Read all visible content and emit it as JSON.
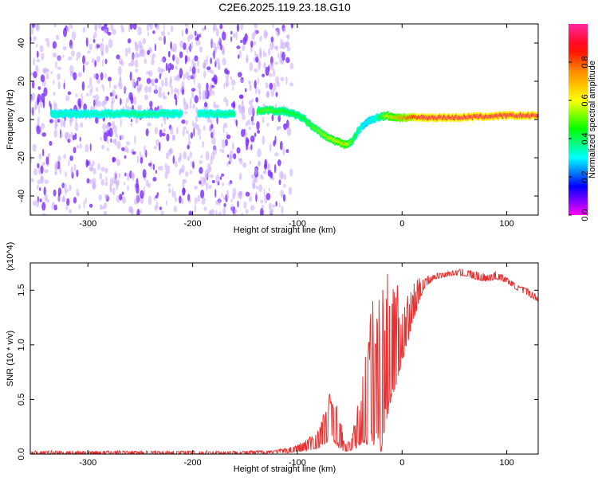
{
  "figure_title": "C2E6.2025.119.23.18.G10",
  "colors": {
    "snr_line": "#e83030",
    "ridge_low": "#5010f0",
    "ridge_high": "#ff2020",
    "noise_dark": "#7a2cff",
    "noise_light": "#c9a8ff"
  },
  "chart_data": [
    {
      "type": "heatmap",
      "title": "",
      "xlabel": "Height of straight line (km)",
      "ylabel": "Frequency (Hz)",
      "xlim": [
        -355,
        130
      ],
      "ylim": [
        -50,
        50
      ],
      "x_ticks": [
        -300,
        -200,
        -100,
        0,
        100
      ],
      "y_ticks": [
        -40,
        -20,
        0,
        20,
        40
      ],
      "colorbar": {
        "label": "Normalized spectral amplitude",
        "range": [
          0.0,
          1.0
        ],
        "ticks": [
          0.0,
          0.2,
          0.4,
          0.6,
          0.8
        ],
        "palette": "rainbow (magenta-blue-cyan-green-yellow-orange-red-pink)"
      },
      "signal_ridge": {
        "x": [
          -335,
          -300,
          -250,
          -200,
          -160,
          -130,
          -110,
          -95,
          -85,
          -75,
          -65,
          -55,
          -48,
          -42,
          -35,
          -25,
          -15,
          -5,
          5,
          20,
          50,
          100,
          130
        ],
        "freq": [
          3,
          3,
          3,
          3,
          3,
          5,
          4,
          1,
          -4,
          -8,
          -11,
          -13,
          -12,
          -6,
          -2,
          1,
          2,
          1,
          1,
          1,
          1,
          2,
          2
        ],
        "amplitude": [
          0.35,
          0.35,
          0.4,
          0.35,
          0.4,
          0.5,
          0.45,
          0.45,
          0.5,
          0.55,
          0.6,
          0.65,
          0.5,
          0.4,
          0.3,
          0.35,
          0.6,
          0.7,
          0.8,
          0.95,
          0.95,
          0.95,
          0.95
        ]
      },
      "noise_region": {
        "x_range": [
          -355,
          -125
        ],
        "freq_range": [
          -50,
          50
        ]
      }
    },
    {
      "type": "line",
      "title": "",
      "xlabel": "Height of straight line (km)",
      "ylabel": "SNR (10 * v/v)",
      "y_multiplier": "(x10^4)",
      "xlim": [
        -355,
        130
      ],
      "ylim": [
        0,
        1.75
      ],
      "x_ticks": [
        -300,
        -200,
        -100,
        0,
        100
      ],
      "y_ticks": [
        0.0,
        0.5,
        1.0,
        1.5
      ],
      "y_tick_labels": [
        "0.0",
        "0.5",
        "1.0",
        "1.5"
      ],
      "series": [
        {
          "envelope_x": [
            -355,
            -300,
            -250,
            -200,
            -150,
            -120,
            -110,
            -100,
            -90,
            -80,
            -75,
            -70,
            -67,
            -64,
            -60,
            -55,
            -50,
            -45,
            -40,
            -35,
            -30,
            -25,
            -20,
            -15,
            -10,
            -5,
            0,
            5,
            10,
            15,
            20,
            30,
            40,
            50,
            60,
            70,
            80,
            90,
            100,
            110,
            120,
            130
          ],
          "envelope_top": [
            0.03,
            0.03,
            0.03,
            0.03,
            0.03,
            0.04,
            0.06,
            0.09,
            0.15,
            0.25,
            0.4,
            0.55,
            0.65,
            0.5,
            0.4,
            0.1,
            0.12,
            0.3,
            0.6,
            0.95,
            1.4,
            1.5,
            1.6,
            1.65,
            1.7,
            1.62,
            1.3,
            1.45,
            1.55,
            1.6,
            1.63,
            1.65,
            1.67,
            1.68,
            1.7,
            1.67,
            1.65,
            1.68,
            1.62,
            1.55,
            1.52,
            1.45
          ],
          "envelope_bottom": [
            0.0,
            0.0,
            0.0,
            0.0,
            0.0,
            0.01,
            0.01,
            0.02,
            0.03,
            0.05,
            0.08,
            0.1,
            0.15,
            0.1,
            0.05,
            0.02,
            0.03,
            0.05,
            0.08,
            0.1,
            0.05,
            0.1,
            0.02,
            0.3,
            0.5,
            0.65,
            0.85,
            1.0,
            1.2,
            1.35,
            1.5,
            1.6,
            1.62,
            1.64,
            1.63,
            1.6,
            1.58,
            1.6,
            1.57,
            1.5,
            1.45,
            1.4
          ]
        }
      ]
    }
  ]
}
